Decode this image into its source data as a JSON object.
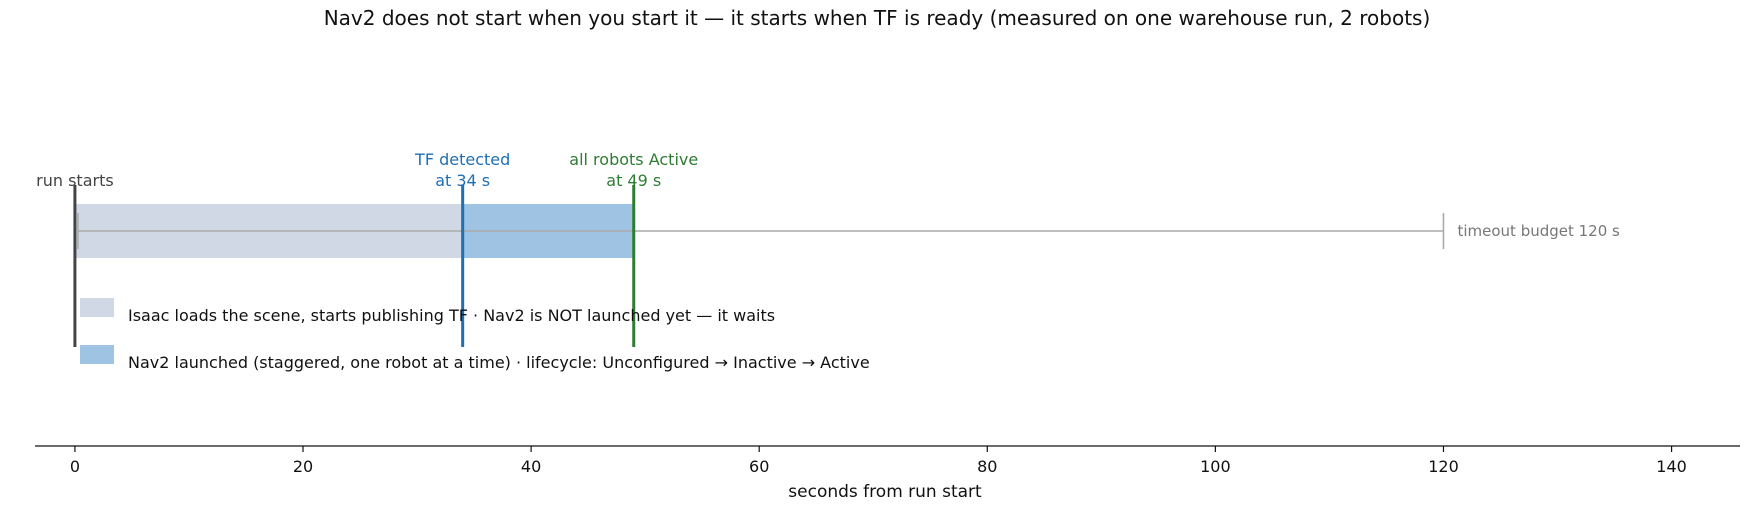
{
  "chart_data": {
    "type": "bar",
    "orientation": "horizontal-timeline",
    "title": "Nav2 does not start when you start it — it starts when TF is ready  (measured on one warehouse run, 2 robots)",
    "xlabel": "seconds from run start",
    "ylabel": "",
    "xlim": [
      -3.5,
      146
    ],
    "xticks": [
      0,
      20,
      40,
      60,
      80,
      100,
      120,
      140
    ],
    "grid": false,
    "legend_position": "lower-left",
    "segments": [
      {
        "label": "Isaac loads the scene, starts publishing TF · Nav2 is NOT launched yet — it waits",
        "start": 0,
        "end": 34,
        "color": "#cfd8e4"
      },
      {
        "label": "Nav2 launched (staggered, one robot at a time) · lifecycle: Unconfigured → Inactive → Active",
        "start": 34,
        "end": 49,
        "color": "#9fc3e2"
      }
    ],
    "markers": [
      {
        "name": "run-start-marker",
        "x": 0,
        "lines": [
          "run starts"
        ],
        "color": "#444444"
      },
      {
        "name": "tf-detected-marker",
        "x": 34,
        "lines": [
          "TF detected",
          "at 34 s"
        ],
        "color": "#1f6fb4"
      },
      {
        "name": "robots-active-marker",
        "x": 49,
        "lines": [
          "all robots Active",
          "at 49 s"
        ],
        "color": "#2e7d32"
      }
    ],
    "timeout": {
      "value": 120,
      "label": "timeout budget 120 s",
      "color": "#aaaaaa"
    }
  }
}
